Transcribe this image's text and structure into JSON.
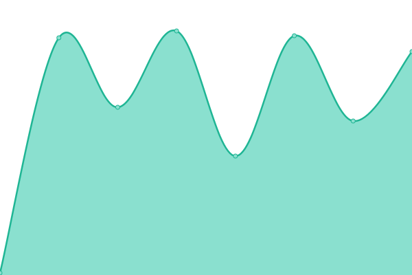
{
  "chart_data": {
    "type": "area",
    "categories": [
      null,
      null,
      null,
      null,
      null,
      null,
      null,
      null
    ],
    "series": [
      {
        "color": "#1fb594",
        "fill": "#8ae0cf",
        "values": [
          3,
          345,
          244,
          355,
          173,
          348,
          224,
          325
        ]
      }
    ],
    "ylim": [
      0,
      400
    ],
    "grid": false
  }
}
